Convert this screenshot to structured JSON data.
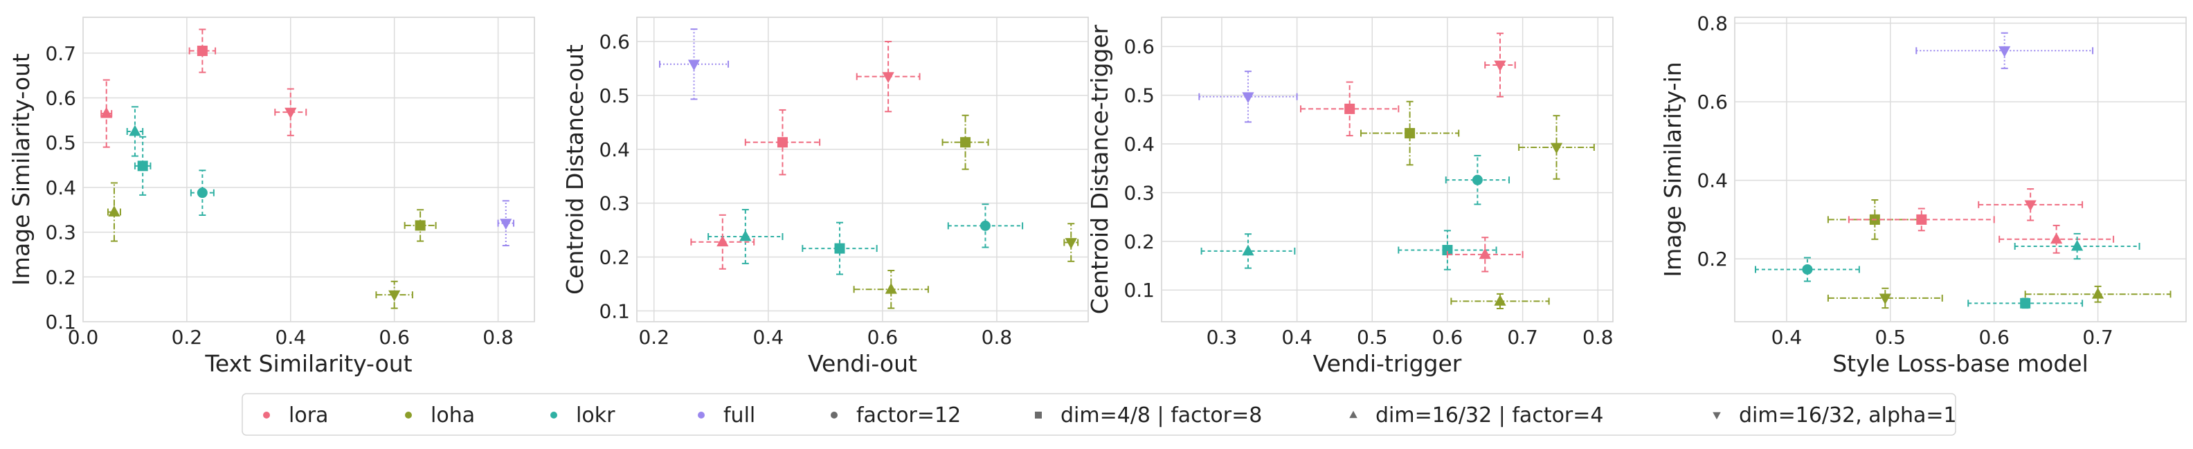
{
  "colors": {
    "lora": "#ef6b80",
    "loha": "#8c9e2a",
    "lokr": "#2fb0a3",
    "full": "#9a87ee",
    "neutral": "#6b6b6b",
    "grid": "#dcdcdc",
    "axes_bg": "#ffffff"
  },
  "legend": {
    "placement": "bottom-center",
    "methods": [
      {
        "label": "lora",
        "color_key": "lora"
      },
      {
        "label": "loha",
        "color_key": "loha"
      },
      {
        "label": "lokr",
        "color_key": "lokr"
      },
      {
        "label": "full",
        "color_key": "full"
      }
    ],
    "configs": [
      {
        "label": "factor=12",
        "marker": "circle"
      },
      {
        "label": "dim=4/8 | factor=8",
        "marker": "square"
      },
      {
        "label": "dim=16/32 | factor=4",
        "marker": "triangle-up"
      },
      {
        "label": "dim=16/32, alpha=1",
        "marker": "triangle-down"
      }
    ]
  },
  "chart_data": [
    {
      "type": "scatter",
      "xlabel": "Text Similarity-out",
      "ylabel": "Image Similarity-out",
      "xlim": [
        0.0,
        0.87
      ],
      "ylim": [
        0.1,
        0.78
      ],
      "xticks": [
        "0.0",
        "0.2",
        "0.4",
        "0.6",
        "0.8"
      ],
      "yticks": [
        "0.1",
        "0.2",
        "0.3",
        "0.4",
        "0.5",
        "0.6",
        "0.7"
      ],
      "grid": true,
      "points": [
        {
          "method": "lora",
          "marker": "square",
          "x": 0.23,
          "y": 0.705,
          "xerr": 0.025,
          "yerr": 0.048
        },
        {
          "method": "lora",
          "marker": "triangle-down",
          "x": 0.4,
          "y": 0.568,
          "xerr": 0.03,
          "yerr": 0.052
        },
        {
          "method": "lora",
          "marker": "triangle-up",
          "x": 0.045,
          "y": 0.565,
          "xerr": 0.01,
          "yerr": 0.075
        },
        {
          "method": "loha",
          "marker": "triangle-up",
          "x": 0.06,
          "y": 0.345,
          "xerr": 0.012,
          "yerr": 0.065
        },
        {
          "method": "loha",
          "marker": "square",
          "x": 0.65,
          "y": 0.315,
          "xerr": 0.03,
          "yerr": 0.035
        },
        {
          "method": "loha",
          "marker": "triangle-down",
          "x": 0.6,
          "y": 0.16,
          "xerr": 0.035,
          "yerr": 0.03
        },
        {
          "method": "lokr",
          "marker": "triangle-up",
          "x": 0.1,
          "y": 0.525,
          "xerr": 0.015,
          "yerr": 0.055
        },
        {
          "method": "lokr",
          "marker": "square",
          "x": 0.115,
          "y": 0.448,
          "xerr": 0.015,
          "yerr": 0.065
        },
        {
          "method": "lokr",
          "marker": "circle",
          "x": 0.23,
          "y": 0.388,
          "xerr": 0.022,
          "yerr": 0.05
        },
        {
          "method": "full",
          "marker": "triangle-down",
          "x": 0.815,
          "y": 0.32,
          "xerr": 0.015,
          "yerr": 0.05
        }
      ]
    },
    {
      "type": "scatter",
      "xlabel": "Vendi-out",
      "ylabel": "Centroid Distance-out",
      "xlim": [
        0.17,
        0.96
      ],
      "ylim": [
        0.08,
        0.645
      ],
      "xticks": [
        "0.2",
        "0.4",
        "0.6",
        "0.8"
      ],
      "yticks": [
        "0.1",
        "0.2",
        "0.3",
        "0.4",
        "0.5",
        "0.6"
      ],
      "grid": true,
      "points": [
        {
          "method": "full",
          "marker": "triangle-down",
          "x": 0.27,
          "y": 0.558,
          "xerr": 0.06,
          "yerr": 0.065
        },
        {
          "method": "lora",
          "marker": "triangle-down",
          "x": 0.61,
          "y": 0.535,
          "xerr": 0.055,
          "yerr": 0.065
        },
        {
          "method": "lora",
          "marker": "square",
          "x": 0.425,
          "y": 0.413,
          "xerr": 0.065,
          "yerr": 0.06
        },
        {
          "method": "loha",
          "marker": "square",
          "x": 0.745,
          "y": 0.413,
          "xerr": 0.04,
          "yerr": 0.05
        },
        {
          "method": "lokr",
          "marker": "circle",
          "x": 0.78,
          "y": 0.258,
          "xerr": 0.065,
          "yerr": 0.04
        },
        {
          "method": "loha",
          "marker": "triangle-down",
          "x": 0.93,
          "y": 0.227,
          "xerr": 0.012,
          "yerr": 0.035
        },
        {
          "method": "lokr",
          "marker": "triangle-up",
          "x": 0.36,
          "y": 0.238,
          "xerr": 0.065,
          "yerr": 0.05
        },
        {
          "method": "lora",
          "marker": "triangle-up",
          "x": 0.32,
          "y": 0.228,
          "xerr": 0.055,
          "yerr": 0.05
        },
        {
          "method": "lokr",
          "marker": "square",
          "x": 0.525,
          "y": 0.216,
          "xerr": 0.065,
          "yerr": 0.048
        },
        {
          "method": "loha",
          "marker": "triangle-up",
          "x": 0.615,
          "y": 0.14,
          "xerr": 0.065,
          "yerr": 0.035
        }
      ]
    },
    {
      "type": "scatter",
      "xlabel": "Vendi-trigger",
      "ylabel": "Centroid Distance-trigger",
      "xlim": [
        0.22,
        0.82
      ],
      "ylim": [
        0.035,
        0.66
      ],
      "xticks": [
        "0.3",
        "0.4",
        "0.5",
        "0.6",
        "0.7",
        "0.8"
      ],
      "yticks": [
        "0.1",
        "0.2",
        "0.3",
        "0.4",
        "0.5",
        "0.6"
      ],
      "grid": true,
      "points": [
        {
          "method": "lora",
          "marker": "triangle-down",
          "x": 0.67,
          "y": 0.562,
          "xerr": 0.02,
          "yerr": 0.065
        },
        {
          "method": "full",
          "marker": "triangle-down",
          "x": 0.335,
          "y": 0.497,
          "xerr": 0.065,
          "yerr": 0.052
        },
        {
          "method": "lora",
          "marker": "square",
          "x": 0.47,
          "y": 0.472,
          "xerr": 0.065,
          "yerr": 0.055
        },
        {
          "method": "loha",
          "marker": "square",
          "x": 0.55,
          "y": 0.422,
          "xerr": 0.065,
          "yerr": 0.065
        },
        {
          "method": "loha",
          "marker": "triangle-down",
          "x": 0.745,
          "y": 0.393,
          "xerr": 0.05,
          "yerr": 0.065
        },
        {
          "method": "lokr",
          "marker": "circle",
          "x": 0.64,
          "y": 0.326,
          "xerr": 0.042,
          "yerr": 0.05
        },
        {
          "method": "lokr",
          "marker": "triangle-up",
          "x": 0.335,
          "y": 0.18,
          "xerr": 0.062,
          "yerr": 0.035
        },
        {
          "method": "lokr",
          "marker": "square",
          "x": 0.6,
          "y": 0.182,
          "xerr": 0.065,
          "yerr": 0.04
        },
        {
          "method": "lora",
          "marker": "triangle-up",
          "x": 0.65,
          "y": 0.173,
          "xerr": 0.05,
          "yerr": 0.035
        },
        {
          "method": "loha",
          "marker": "triangle-up",
          "x": 0.67,
          "y": 0.077,
          "xerr": 0.065,
          "yerr": 0.015
        }
      ]
    },
    {
      "type": "scatter",
      "xlabel": "Style Loss-base model",
      "ylabel": "Image Similarity-in",
      "xlim": [
        0.35,
        0.785
      ],
      "ylim": [
        0.04,
        0.815
      ],
      "xticks": [
        "0.4",
        "0.5",
        "0.6",
        "0.7"
      ],
      "yticks": [
        "0.2",
        "0.4",
        "0.6",
        "0.8"
      ],
      "grid": true,
      "points": [
        {
          "method": "full",
          "marker": "triangle-down",
          "x": 0.61,
          "y": 0.73,
          "xerr": 0.085,
          "yerr": 0.045
        },
        {
          "method": "lora",
          "marker": "triangle-down",
          "x": 0.635,
          "y": 0.338,
          "xerr": 0.05,
          "yerr": 0.04
        },
        {
          "method": "loha",
          "marker": "square",
          "x": 0.485,
          "y": 0.3,
          "xerr": 0.045,
          "yerr": 0.05
        },
        {
          "method": "lora",
          "marker": "square",
          "x": 0.53,
          "y": 0.3,
          "xerr": 0.07,
          "yerr": 0.028
        },
        {
          "method": "lora",
          "marker": "triangle-up",
          "x": 0.66,
          "y": 0.25,
          "xerr": 0.055,
          "yerr": 0.035
        },
        {
          "method": "lokr",
          "marker": "triangle-up",
          "x": 0.68,
          "y": 0.232,
          "xerr": 0.06,
          "yerr": 0.032
        },
        {
          "method": "lokr",
          "marker": "circle",
          "x": 0.42,
          "y": 0.173,
          "xerr": 0.05,
          "yerr": 0.03
        },
        {
          "method": "loha",
          "marker": "triangle-down",
          "x": 0.495,
          "y": 0.1,
          "xerr": 0.055,
          "yerr": 0.025
        },
        {
          "method": "loha",
          "marker": "triangle-up",
          "x": 0.7,
          "y": 0.11,
          "xerr": 0.07,
          "yerr": 0.02
        },
        {
          "method": "lokr",
          "marker": "square",
          "x": 0.63,
          "y": 0.087,
          "xerr": 0.055,
          "yerr": 0.012
        }
      ]
    }
  ]
}
